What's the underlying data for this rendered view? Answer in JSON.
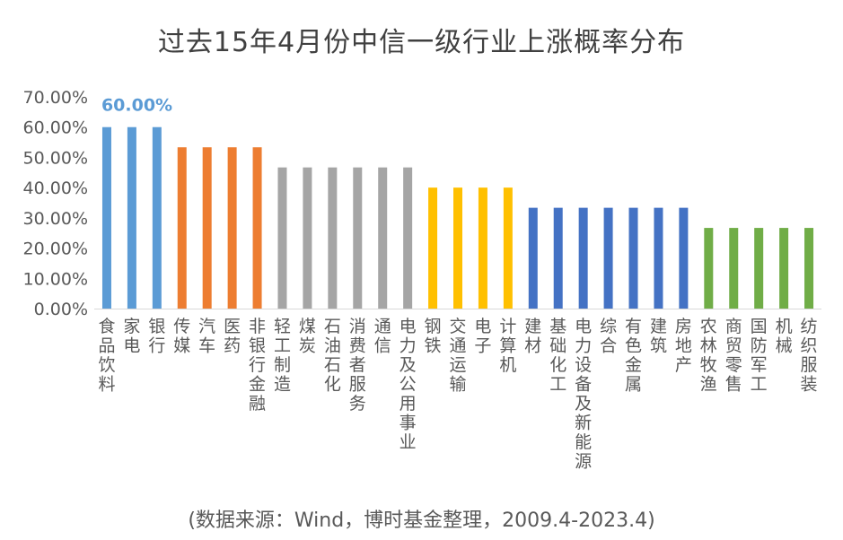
{
  "chart_data": {
    "type": "bar",
    "title": "过去15年4月份中信一级行业上涨概率分布",
    "source": "(数据来源：Wind，博时基金整理，2009.4-2023.4)",
    "ylim": [
      0,
      70
    ],
    "yticks": [
      "0.00%",
      "10.00%",
      "20.00%",
      "30.00%",
      "40.00%",
      "50.00%",
      "60.00%",
      "70.00%"
    ],
    "grid": false,
    "legend": "none",
    "categories": [
      "食品饮料",
      "家电",
      "银行",
      "传媒",
      "汽车",
      "医药",
      "非银行金融",
      "轻工制造",
      "煤炭",
      "石油石化",
      "消费者服务",
      "通信",
      "电力及公用事业",
      "钢铁",
      "交通运输",
      "电子",
      "计算机",
      "建材",
      "基础化工",
      "电力设备及新能源",
      "综合",
      "有色金属",
      "建筑",
      "房地产",
      "农林牧渔",
      "商贸零售",
      "国防军工",
      "机械",
      "纺织服装"
    ],
    "values": [
      60,
      60,
      60,
      53.33,
      53.33,
      53.33,
      53.33,
      46.67,
      46.67,
      46.67,
      46.67,
      46.67,
      46.67,
      40,
      40,
      40,
      40,
      33.33,
      33.33,
      33.33,
      33.33,
      33.33,
      33.33,
      33.33,
      26.67,
      26.67,
      26.67,
      26.67,
      26.67
    ],
    "bar_colors": [
      "#5B9BD5",
      "#5B9BD5",
      "#5B9BD5",
      "#ED7D31",
      "#ED7D31",
      "#ED7D31",
      "#ED7D31",
      "#A5A5A5",
      "#A5A5A5",
      "#A5A5A5",
      "#A5A5A5",
      "#A5A5A5",
      "#A5A5A5",
      "#FFC000",
      "#FFC000",
      "#FFC000",
      "#FFC000",
      "#4472C4",
      "#4472C4",
      "#4472C4",
      "#4472C4",
      "#4472C4",
      "#4472C4",
      "#4472C4",
      "#70AD47",
      "#70AD47",
      "#70AD47",
      "#70AD47",
      "#70AD47"
    ],
    "data_labels": [
      {
        "index": 0,
        "text": "60.00%",
        "color": "#5B9BD5"
      }
    ]
  }
}
